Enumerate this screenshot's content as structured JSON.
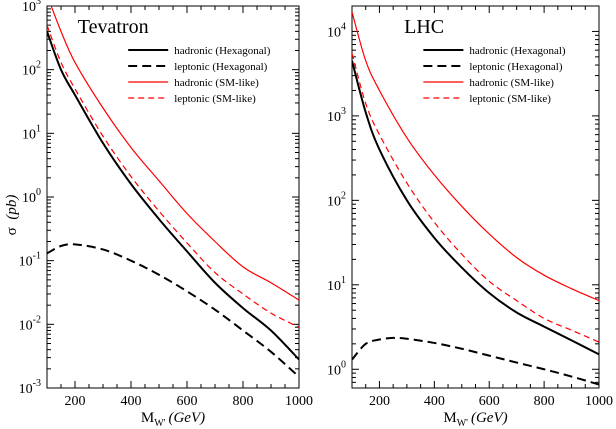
{
  "chart_data": [
    {
      "type": "line",
      "title": "Tevatron",
      "xlabel": "M_W'",
      "xlabel_unit": "(GeV)",
      "ylabel": "σ",
      "ylabel_unit": "(pb)",
      "y_scale": "log",
      "xlim": [
        100,
        1000
      ],
      "ylim_exp": [
        -3,
        3
      ],
      "x_ticks": [
        200,
        400,
        600,
        800,
        1000
      ],
      "y_tick_exps": [
        -3,
        -2,
        -1,
        0,
        1,
        2,
        3
      ],
      "legend_position": "top-right",
      "series": [
        {
          "name": "hadronic (Hexagonal)",
          "color": "#000000",
          "dash": "solid",
          "width": 2,
          "x": [
            100,
            150,
            200,
            300,
            400,
            500,
            600,
            700,
            800,
            900,
            1000
          ],
          "y": [
            400,
            100,
            40,
            7,
            1.6,
            0.45,
            0.14,
            0.045,
            0.018,
            0.008,
            0.0028
          ]
        },
        {
          "name": "leptonic (Hexagonal)",
          "color": "#000000",
          "dash": "dashed",
          "width": 2,
          "x": [
            100,
            150,
            200,
            300,
            400,
            500,
            600,
            700,
            800,
            900,
            1000
          ],
          "y": [
            0.13,
            0.17,
            0.18,
            0.15,
            0.1,
            0.06,
            0.033,
            0.017,
            0.008,
            0.0037,
            0.0015
          ]
        },
        {
          "name": "hadronic (SM-like)",
          "color": "#ff0000",
          "dash": "solid",
          "width": 1.2,
          "x": [
            100,
            150,
            200,
            300,
            400,
            500,
            600,
            700,
            800,
            900,
            1000
          ],
          "y": [
            1500,
            400,
            130,
            25,
            6,
            1.8,
            0.55,
            0.2,
            0.08,
            0.045,
            0.024
          ]
        },
        {
          "name": "leptonic (SM-like)",
          "color": "#ff0000",
          "dash": "dashed",
          "width": 1.2,
          "x": [
            100,
            150,
            200,
            300,
            400,
            500,
            600,
            700,
            800,
            900,
            1000
          ],
          "y": [
            500,
            130,
            50,
            9,
            2.1,
            0.6,
            0.19,
            0.065,
            0.03,
            0.015,
            0.009
          ]
        }
      ]
    },
    {
      "type": "line",
      "title": "LHC",
      "xlabel": "M_W'",
      "xlabel_unit": "(GeV)",
      "y_scale": "log",
      "xlim": [
        100,
        1000
      ],
      "ylim": [
        0.6,
        20000
      ],
      "x_ticks": [
        200,
        400,
        600,
        800,
        1000
      ],
      "y_tick_exps": [
        0,
        1,
        2,
        3,
        4
      ],
      "legend_position": "top-right",
      "series": [
        {
          "name": "hadronic (Hexagonal)",
          "color": "#000000",
          "dash": "solid",
          "width": 2,
          "x": [
            100,
            150,
            200,
            300,
            400,
            500,
            600,
            700,
            800,
            900,
            1000
          ],
          "y": [
            4500,
            1100,
            400,
            100,
            36,
            16,
            8,
            4.7,
            3.2,
            2.2,
            1.5
          ]
        },
        {
          "name": "leptonic (Hexagonal)",
          "color": "#000000",
          "dash": "dashed",
          "width": 2,
          "x": [
            100,
            150,
            200,
            250,
            300,
            400,
            500,
            600,
            700,
            800,
            900,
            1000
          ],
          "y": [
            1.3,
            2.0,
            2.25,
            2.35,
            2.3,
            2.05,
            1.75,
            1.45,
            1.2,
            1.0,
            0.82,
            0.66
          ]
        },
        {
          "name": "hadronic (SM-like)",
          "color": "#ff0000",
          "dash": "solid",
          "width": 1.2,
          "x": [
            100,
            150,
            200,
            300,
            400,
            500,
            600,
            700,
            800,
            900,
            1000
          ],
          "y": [
            17000,
            4500,
            2000,
            550,
            200,
            85,
            40,
            21,
            13,
            9,
            6.5
          ]
        },
        {
          "name": "leptonic (SM-like)",
          "color": "#ff0000",
          "dash": "dashed",
          "width": 1.2,
          "x": [
            100,
            150,
            200,
            300,
            400,
            500,
            600,
            700,
            800,
            900,
            1000
          ],
          "y": [
            5500,
            1400,
            600,
            160,
            55,
            23,
            11,
            6.5,
            4,
            2.9,
            2.1
          ]
        }
      ]
    }
  ]
}
